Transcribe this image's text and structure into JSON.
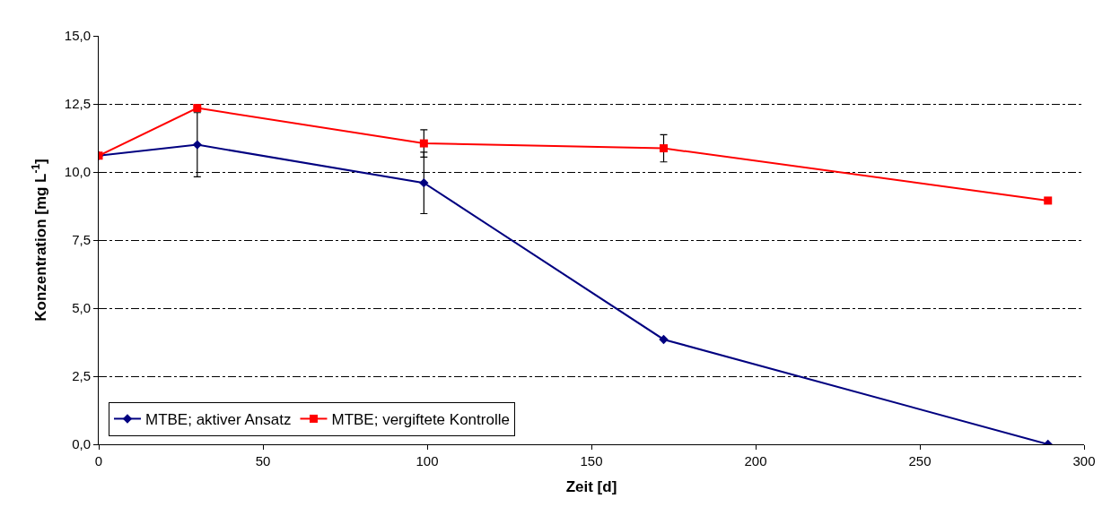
{
  "chart_data": {
    "type": "line",
    "xlabel": "Zeit [d]",
    "ylabel": "Konzentration [mg L$^{-1}$]",
    "series": [
      {
        "name": "MTBE; aktiver Ansatz",
        "color": "#000080",
        "marker": "diamond",
        "x": [
          0,
          30,
          99,
          172,
          289
        ],
        "values": [
          10.6,
          11.0,
          9.6,
          3.85,
          0.0
        ],
        "errors": [
          null,
          1.18,
          1.13,
          null,
          null
        ]
      },
      {
        "name": "MTBE; vergiftete Kontrolle",
        "color": "#ff0000",
        "marker": "square",
        "x": [
          0,
          30,
          99,
          172,
          289
        ],
        "values": [
          10.6,
          12.35,
          11.05,
          10.87,
          8.95
        ],
        "errors": [
          null,
          null,
          0.5,
          0.5,
          null
        ]
      }
    ],
    "xlim": [
      0,
      300
    ],
    "xticks": [
      0,
      50,
      100,
      150,
      200,
      250,
      300
    ],
    "ylim": [
      0,
      15
    ],
    "yticks": [
      {
        "value": 0,
        "label": "0,0"
      },
      {
        "value": 2.5,
        "label": "2,5"
      },
      {
        "value": 5,
        "label": "5,0"
      },
      {
        "value": 7.5,
        "label": "7,5"
      },
      {
        "value": 10,
        "label": "10,0"
      },
      {
        "value": 12.5,
        "label": "12,5"
      },
      {
        "value": 15,
        "label": "15,0"
      }
    ],
    "grid": "y",
    "legend": "bottom left",
    "line_style": "solid"
  }
}
